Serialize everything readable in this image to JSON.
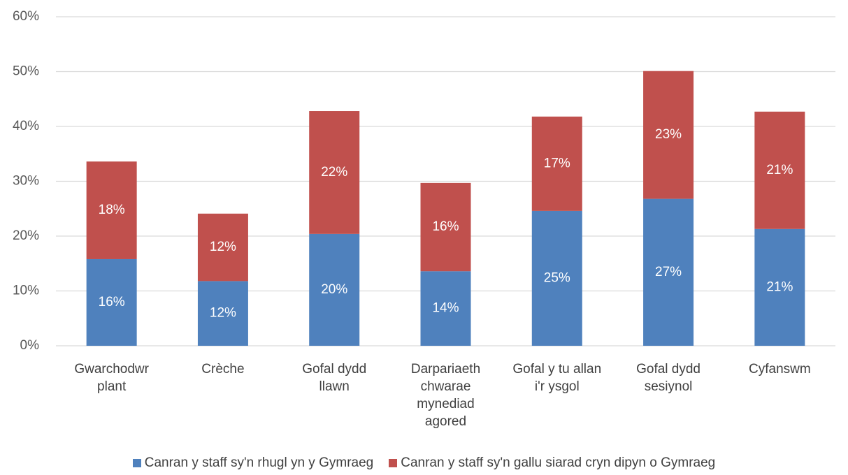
{
  "chart_data": {
    "type": "stacked_bar",
    "categories": [
      "Gwarchodwr\nplant",
      "Crèche",
      "Gofal dydd\nllawn",
      "Darpariaeth\nchwarae\nmynediad\nagored",
      "Gofal y tu allan\ni'r ysgol",
      "Gofal dydd\nsesiynol",
      "Cyfanswm"
    ],
    "series": [
      {
        "name": "Canran y staff sy'n rhugl yn y Gymraeg",
        "color": "#4f81bd",
        "values": [
          15.8,
          11.8,
          20.4,
          13.6,
          24.6,
          26.8,
          21.3
        ],
        "value_labels": [
          "16%",
          "12%",
          "20%",
          "14%",
          "25%",
          "27%",
          "21%"
        ]
      },
      {
        "name": "Canran y staff sy'n gallu siarad cryn dipyn o Gymraeg",
        "color": "#c0504d",
        "values": [
          17.8,
          12.3,
          22.4,
          16.1,
          17.2,
          23.3,
          21.4
        ],
        "value_labels": [
          "18%",
          "12%",
          "22%",
          "16%",
          "17%",
          "23%",
          "21%"
        ]
      }
    ],
    "ylim": [
      0,
      60
    ],
    "yticks": [
      {
        "value": 0,
        "label": "0%"
      },
      {
        "value": 10,
        "label": "10%"
      },
      {
        "value": 20,
        "label": "20%"
      },
      {
        "value": 30,
        "label": "30%"
      },
      {
        "value": 40,
        "label": "40%"
      },
      {
        "value": 50,
        "label": "50%"
      },
      {
        "value": 60,
        "label": "60%"
      }
    ],
    "grid": true,
    "legend": "bottom"
  }
}
